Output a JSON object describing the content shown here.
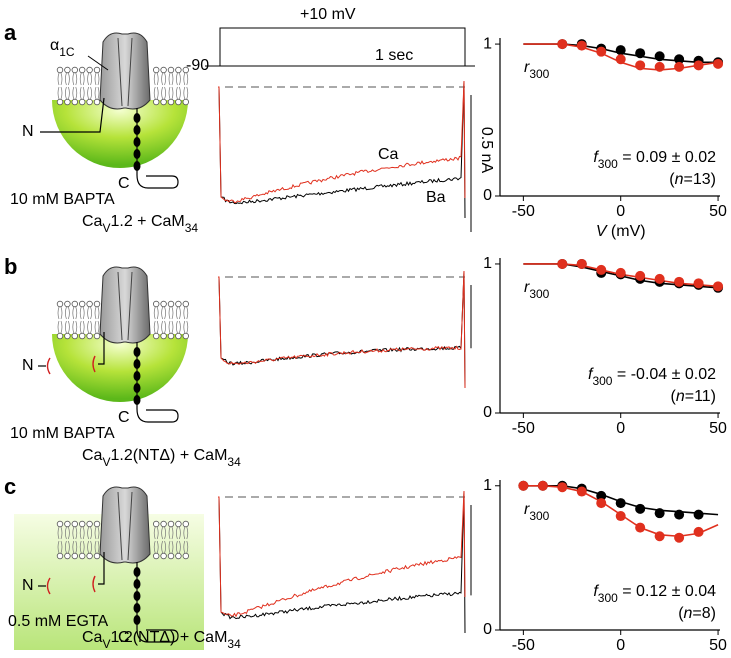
{
  "panels": [
    {
      "letter": "a",
      "buffer": "10 mM BAPTA",
      "construct": [
        "Ca",
        "V",
        "1.2 + CaM",
        "34"
      ],
      "n_label": "N",
      "c_label": "C"
    },
    {
      "letter": "b",
      "buffer": "10 mM BAPTA",
      "construct": [
        "Ca",
        "V",
        "1.2(NTΔ) + CaM",
        "34"
      ],
      "n_label": "N",
      "c_label": "C"
    },
    {
      "letter": "c",
      "buffer": "0.5 mM EGTA",
      "construct": [
        "Ca",
        "V",
        "1.2(NTΔ) + CaM",
        "34"
      ],
      "n_label": "N",
      "c_label": "C"
    }
  ],
  "subunit": [
    "α",
    "1C"
  ],
  "protocol": {
    "step": "+10 mV",
    "hold": "-90",
    "time": "1 sec"
  },
  "scale_current": "0.5 nA",
  "trace_labels": [
    "Ca",
    "Ba"
  ],
  "chart_data": [
    {
      "type": "scatter",
      "xlim": [
        -62,
        51
      ],
      "ylim": [
        0,
        1.04
      ],
      "xticks": [
        -50,
        0,
        50
      ],
      "yticks": [
        0,
        1
      ],
      "x_label": [
        "V",
        " (mV)"
      ],
      "r_label": [
        "r",
        "300"
      ],
      "f_label": [
        "f",
        "300",
        " = 0.09 ± 0.02"
      ],
      "n_label": [
        "(",
        "n",
        "=13)"
      ],
      "series": [
        {
          "color": "#000000",
          "x": [
            -30,
            -20,
            -10,
            0,
            10,
            20,
            30,
            40,
            50
          ],
          "values": [
            1.0,
            1.0,
            0.97,
            0.96,
            0.94,
            0.92,
            0.9,
            0.89,
            0.88
          ]
        },
        {
          "color": "#e0301e",
          "x": [
            -30,
            -20,
            -10,
            0,
            10,
            20,
            30,
            40,
            50
          ],
          "values": [
            1.0,
            0.99,
            0.95,
            0.9,
            0.86,
            0.85,
            0.85,
            0.86,
            0.87
          ]
        }
      ],
      "fits": [
        {
          "color": "#000000",
          "x": [
            -50,
            -40,
            -30,
            -20,
            -10,
            0,
            10,
            20,
            30,
            40,
            50
          ],
          "values": [
            1.0,
            1.0,
            1.0,
            0.99,
            0.97,
            0.94,
            0.92,
            0.9,
            0.89,
            0.88,
            0.88
          ]
        },
        {
          "color": "#e0301e",
          "x": [
            -50,
            -40,
            -30,
            -20,
            -10,
            0,
            10,
            20,
            30,
            40,
            50
          ],
          "values": [
            1.0,
            1.0,
            1.0,
            0.98,
            0.94,
            0.88,
            0.84,
            0.83,
            0.84,
            0.86,
            0.88
          ]
        }
      ]
    },
    {
      "type": "scatter",
      "xlim": [
        -62,
        51
      ],
      "ylim": [
        0,
        1.04
      ],
      "xticks": [
        -50,
        0,
        50
      ],
      "yticks": [
        0,
        1
      ],
      "r_label": [
        "r",
        "300"
      ],
      "f_label": [
        "f",
        "300",
        " = -0.04 ± 0.02"
      ],
      "n_label": [
        "(",
        "n",
        "=11)"
      ],
      "series": [
        {
          "color": "#000000",
          "x": [
            -30,
            -20,
            -10,
            0,
            10,
            20,
            30,
            40,
            50
          ],
          "values": [
            1.0,
            1.0,
            0.94,
            0.93,
            0.9,
            0.88,
            0.87,
            0.86,
            0.84
          ]
        },
        {
          "color": "#e0301e",
          "x": [
            -30,
            -20,
            -10,
            0,
            10,
            20,
            30,
            40,
            50
          ],
          "values": [
            1.0,
            1.0,
            0.96,
            0.94,
            0.92,
            0.9,
            0.88,
            0.87,
            0.85
          ]
        }
      ],
      "fits": [
        {
          "color": "#000000",
          "x": [
            -50,
            -40,
            -30,
            -20,
            -10,
            0,
            10,
            20,
            30,
            40,
            50
          ],
          "values": [
            1.0,
            1.0,
            1.0,
            0.98,
            0.95,
            0.92,
            0.89,
            0.87,
            0.86,
            0.85,
            0.84
          ]
        },
        {
          "color": "#e0301e",
          "x": [
            -50,
            -40,
            -30,
            -20,
            -10,
            0,
            10,
            20,
            30,
            40,
            50
          ],
          "values": [
            1.0,
            1.0,
            1.0,
            0.99,
            0.96,
            0.93,
            0.91,
            0.89,
            0.87,
            0.86,
            0.85
          ]
        }
      ]
    },
    {
      "type": "scatter",
      "xlim": [
        -62,
        51
      ],
      "ylim": [
        0,
        1.04
      ],
      "xticks": [
        -50,
        0,
        50
      ],
      "yticks": [
        0,
        1
      ],
      "r_label": [
        "r",
        "300"
      ],
      "f_label": [
        "f",
        "300",
        " = 0.12 ± 0.04"
      ],
      "n_label": [
        "(",
        "n",
        "=8)"
      ],
      "series": [
        {
          "color": "#000000",
          "x": [
            -50,
            -40,
            -30,
            -20,
            -10,
            0,
            10,
            20,
            30,
            40
          ],
          "values": [
            1.0,
            1.0,
            1.0,
            0.98,
            0.93,
            0.88,
            0.84,
            0.81,
            0.8,
            0.8
          ]
        },
        {
          "color": "#e0301e",
          "x": [
            -50,
            -40,
            -30,
            -20,
            -10,
            0,
            10,
            20,
            30,
            40
          ],
          "values": [
            1.0,
            1.0,
            0.99,
            0.96,
            0.88,
            0.79,
            0.71,
            0.65,
            0.64,
            0.68
          ]
        }
      ],
      "fits": [
        {
          "color": "#000000",
          "x": [
            -50,
            -40,
            -30,
            -20,
            -10,
            0,
            10,
            20,
            30,
            40,
            50
          ],
          "values": [
            1.0,
            1.0,
            1.0,
            0.98,
            0.94,
            0.89,
            0.85,
            0.83,
            0.82,
            0.81,
            0.8
          ]
        },
        {
          "color": "#e0301e",
          "x": [
            -50,
            -40,
            -30,
            -20,
            -10,
            0,
            10,
            20,
            30,
            40,
            50
          ],
          "values": [
            1.0,
            1.0,
            0.99,
            0.96,
            0.89,
            0.8,
            0.71,
            0.66,
            0.65,
            0.67,
            0.73
          ]
        }
      ]
    }
  ]
}
